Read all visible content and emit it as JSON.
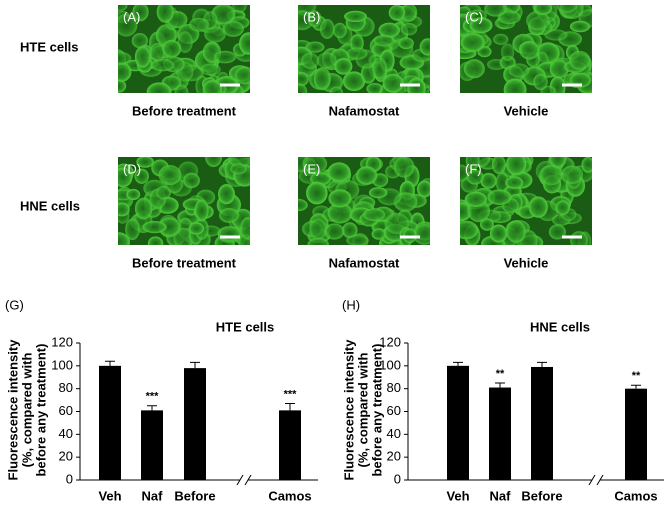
{
  "row_labels": [
    "HTE cells",
    "HNE cells"
  ],
  "panels": [
    {
      "label": "(A)",
      "caption": "Before treatment"
    },
    {
      "label": "(B)",
      "caption": "Nafamostat"
    },
    {
      "label": "(C)",
      "caption": "Vehicle"
    },
    {
      "label": "(D)",
      "caption": "Before treatment"
    },
    {
      "label": "(E)",
      "caption": "Nafamostat"
    },
    {
      "label": "(F)",
      "caption": "Vehicle"
    }
  ],
  "chart_data": [
    {
      "type": "bar",
      "panel_label": "(G)",
      "title": "HTE cells",
      "y_label": [
        "Fluorescence intensity",
        "(%, compared with",
        "before any treatment)"
      ],
      "categories": [
        "Veh",
        "Naf",
        "Before",
        "Camos"
      ],
      "values": [
        100,
        61,
        98,
        61
      ],
      "errors": [
        4,
        4,
        5,
        6
      ],
      "significance": [
        null,
        "***",
        null,
        "***"
      ],
      "color": "#000000",
      "ylim": [
        0,
        120
      ],
      "yticks": [
        0,
        20,
        40,
        60,
        80,
        100,
        120
      ]
    },
    {
      "type": "bar",
      "panel_label": "(H)",
      "title": "HNE cells",
      "y_label": [
        "Fluorescence intensity",
        "(%, compared with",
        "before any treatment)"
      ],
      "categories": [
        "Veh",
        "Naf",
        "Before",
        "Camos"
      ],
      "values": [
        100,
        81,
        99,
        80
      ],
      "errors": [
        3,
        4,
        4,
        3
      ],
      "significance": [
        null,
        "**",
        null,
        "**"
      ],
      "color": "#000000",
      "ylim": [
        0,
        120
      ],
      "yticks": [
        0,
        20,
        40,
        60,
        80,
        100,
        120
      ]
    }
  ]
}
